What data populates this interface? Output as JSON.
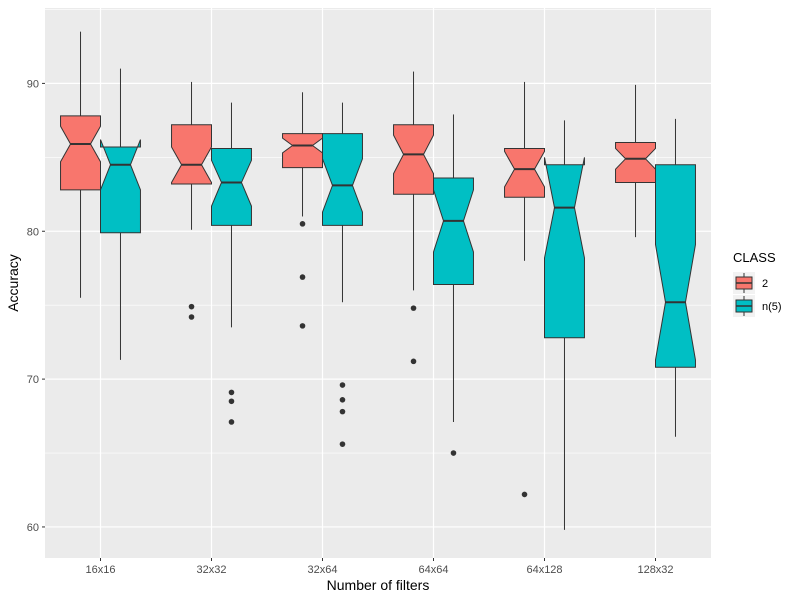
{
  "chart_data": {
    "type": "boxplot",
    "notched": true,
    "xlabel": "Number of filters",
    "ylabel": "Accuracy",
    "ylim": [
      57.9,
      95.1
    ],
    "yticks": [
      60,
      70,
      80,
      90
    ],
    "categories": [
      "16x16",
      "32x32",
      "32x64",
      "64x64",
      "64x128",
      "128x32"
    ],
    "legend": {
      "title": "CLASS",
      "position": "right"
    },
    "series": [
      {
        "name": "2",
        "color": "#F8766D",
        "boxes": [
          {
            "lower_whisker": 75.5,
            "q1": 82.8,
            "median": 85.9,
            "q3": 87.8,
            "upper_whisker": 93.5,
            "notch_low": 84.7,
            "notch_high": 87.1,
            "outliers": []
          },
          {
            "lower_whisker": 80.1,
            "q1": 83.2,
            "median": 84.5,
            "q3": 87.2,
            "upper_whisker": 90.1,
            "notch_low": 83.3,
            "notch_high": 85.7,
            "outliers": [
              74.9,
              74.2
            ]
          },
          {
            "lower_whisker": 81.0,
            "q1": 84.3,
            "median": 85.8,
            "q3": 86.6,
            "upper_whisker": 89.4,
            "notch_low": 85.3,
            "notch_high": 86.3,
            "outliers": [
              80.5,
              76.9,
              73.6
            ]
          },
          {
            "lower_whisker": 76.0,
            "q1": 82.5,
            "median": 85.2,
            "q3": 87.2,
            "upper_whisker": 90.8,
            "notch_low": 83.9,
            "notch_high": 86.5,
            "outliers": [
              74.8,
              71.2
            ]
          },
          {
            "lower_whisker": 78.0,
            "q1": 82.3,
            "median": 84.2,
            "q3": 85.6,
            "upper_whisker": 90.1,
            "notch_low": 83.0,
            "notch_high": 85.4,
            "outliers": [
              62.2
            ]
          },
          {
            "lower_whisker": 79.6,
            "q1": 83.3,
            "median": 84.9,
            "q3": 86.0,
            "upper_whisker": 89.9,
            "notch_low": 84.2,
            "notch_high": 85.6,
            "outliers": []
          }
        ]
      },
      {
        "name": "n(5)",
        "color": "#00BFC4",
        "boxes": [
          {
            "lower_whisker": 71.3,
            "q1": 79.9,
            "median": 84.5,
            "q3": 85.7,
            "upper_whisker": 91.0,
            "notch_low": 82.8,
            "notch_high": 86.2,
            "outliers": []
          },
          {
            "lower_whisker": 73.5,
            "q1": 80.4,
            "median": 83.3,
            "q3": 85.6,
            "upper_whisker": 88.7,
            "notch_low": 81.7,
            "notch_high": 84.8,
            "outliers": [
              69.1,
              68.5,
              67.1
            ]
          },
          {
            "lower_whisker": 75.2,
            "q1": 80.4,
            "median": 83.1,
            "q3": 86.6,
            "upper_whisker": 88.7,
            "notch_low": 81.3,
            "notch_high": 84.9,
            "outliers": [
              69.6,
              68.6,
              67.8,
              65.6
            ]
          },
          {
            "lower_whisker": 67.1,
            "q1": 76.4,
            "median": 80.7,
            "q3": 83.6,
            "upper_whisker": 87.9,
            "notch_low": 78.6,
            "notch_high": 82.8,
            "outliers": [
              65.0
            ]
          },
          {
            "lower_whisker": 59.8,
            "q1": 72.8,
            "median": 81.6,
            "q3": 84.5,
            "upper_whisker": 87.5,
            "notch_low": 78.2,
            "notch_high": 85.0,
            "outliers": []
          },
          {
            "lower_whisker": 66.1,
            "q1": 70.8,
            "median": 75.2,
            "q3": 84.5,
            "upper_whisker": 87.6,
            "notch_low": 71.3,
            "notch_high": 79.1,
            "outliers": []
          }
        ]
      }
    ]
  }
}
